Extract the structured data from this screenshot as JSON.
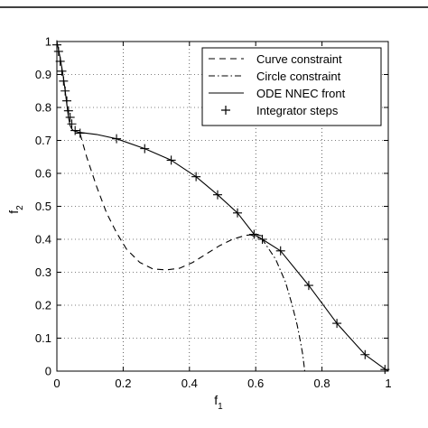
{
  "chart_data": {
    "type": "line",
    "xlabel": "f",
    "xlabel_sub": "1",
    "ylabel": "f",
    "ylabel_sub": "2",
    "xlim": [
      0,
      1
    ],
    "ylim": [
      0,
      1
    ],
    "xticks": [
      0,
      0.2,
      0.4,
      0.6,
      0.8,
      1
    ],
    "xtick_labels": [
      "0",
      "0.2",
      "0.4",
      "0.6",
      "0.8",
      "1"
    ],
    "yticks": [
      0,
      0.1,
      0.2,
      0.3,
      0.4,
      0.5,
      0.6,
      0.7,
      0.8,
      0.9,
      1
    ],
    "ytick_labels": [
      "0",
      "0.1",
      "0.2",
      "0.3",
      "0.4",
      "0.5",
      "0.6",
      "0.7",
      "0.8",
      "0.9",
      "1"
    ],
    "grid": true,
    "legend_position": "top-right",
    "series": [
      {
        "name": "Curve constraint",
        "style": "dashed",
        "x": [
          0.07,
          0.09,
          0.12,
          0.15,
          0.18,
          0.21,
          0.25,
          0.29,
          0.33,
          0.37,
          0.41,
          0.45,
          0.49,
          0.53,
          0.57,
          0.6,
          0.62
        ],
        "y": [
          0.72,
          0.65,
          0.56,
          0.48,
          0.42,
          0.37,
          0.33,
          0.31,
          0.307,
          0.312,
          0.33,
          0.355,
          0.38,
          0.4,
          0.412,
          0.415,
          0.41
        ]
      },
      {
        "name": "Circle constraint",
        "style": "dashdot",
        "x": [
          0.58,
          0.62,
          0.66,
          0.69,
          0.71,
          0.725,
          0.735,
          0.742,
          0.748
        ],
        "y": [
          0.415,
          0.4,
          0.34,
          0.27,
          0.2,
          0.14,
          0.09,
          0.05,
          0.0
        ]
      },
      {
        "name": "ODE NNEC front",
        "style": "solid",
        "x": [
          0.0,
          0.01,
          0.02,
          0.025,
          0.03,
          0.035,
          0.04,
          0.045,
          0.05,
          0.055,
          0.065,
          0.12,
          0.18,
          0.265,
          0.345,
          0.42,
          0.485,
          0.545,
          0.595,
          0.62,
          0.675,
          0.76,
          0.845,
          0.93,
          0.985,
          1.0
        ],
        "y": [
          1.0,
          0.95,
          0.89,
          0.85,
          0.81,
          0.77,
          0.745,
          0.735,
          0.73,
          0.728,
          0.725,
          0.718,
          0.705,
          0.675,
          0.64,
          0.59,
          0.535,
          0.48,
          0.415,
          0.4,
          0.365,
          0.26,
          0.145,
          0.05,
          0.01,
          0.0
        ]
      },
      {
        "name": "Integrator steps",
        "style": "plus",
        "x": [
          0.0,
          0.005,
          0.01,
          0.015,
          0.02,
          0.025,
          0.03,
          0.035,
          0.04,
          0.045,
          0.055,
          0.07,
          0.18,
          0.265,
          0.345,
          0.42,
          0.485,
          0.545,
          0.595,
          0.62,
          0.675,
          0.76,
          0.845,
          0.93,
          0.99
        ],
        "y": [
          0.99,
          0.97,
          0.94,
          0.91,
          0.88,
          0.85,
          0.82,
          0.79,
          0.77,
          0.75,
          0.73,
          0.722,
          0.705,
          0.675,
          0.64,
          0.59,
          0.535,
          0.48,
          0.415,
          0.4,
          0.365,
          0.26,
          0.145,
          0.05,
          0.005
        ]
      }
    ]
  }
}
